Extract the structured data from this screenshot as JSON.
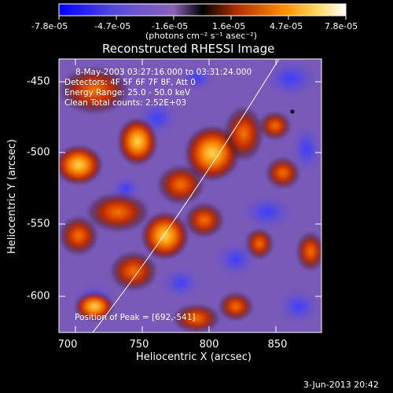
{
  "colorbar": {
    "ticks": [
      "-7.8e-05",
      "-4.7e-05",
      "-1.6e-05",
      "1.6e-05",
      "4.7e-05",
      "7.8e-05"
    ],
    "units_label": "(photons cm⁻² s⁻¹ asec⁻²)"
  },
  "image": {
    "title": "Reconstructed RHESSI Image",
    "lines": [
      "8-May-2003 03:27:16.000 to 03:31:24.000",
      "Detectors: 4F 5F 6F 7F 8F, Att 0",
      "Energy Range: 25.0 - 50.0 keV",
      "Clean     Total counts: 2.52E+03"
    ],
    "peak": "Position of Peak = [692,-541]",
    "xlabel": "Heliocentric X (arcsec)",
    "ylabel": "Heliocentric Y (arcsec)",
    "xticks": [
      "700",
      "750",
      "800",
      "850"
    ],
    "yticks": [
      "-450",
      "-500",
      "-550",
      "-600"
    ],
    "timestamp": "3-Jun-2013 20:42"
  },
  "colors": {
    "background": "#000000",
    "text": "#ffffff",
    "colormap": [
      "#0000ff",
      "#6a5acd",
      "#8b5fbf",
      "#000000",
      "#d94700",
      "#ffa500",
      "#ffff80",
      "#ffffff"
    ]
  }
}
